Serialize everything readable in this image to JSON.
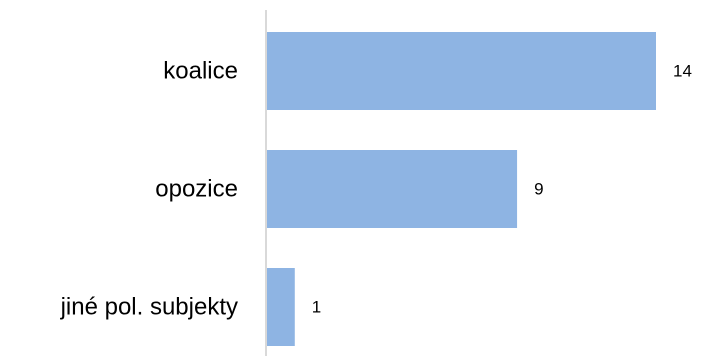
{
  "chart_data": {
    "type": "bar",
    "orientation": "horizontal",
    "categories": [
      "koalice",
      "opozice",
      "jiné pol. subjekty"
    ],
    "values": [
      14,
      9,
      1
    ],
    "data_labels": [
      "14",
      "9",
      "1"
    ],
    "title": "",
    "xlabel": "",
    "ylabel": "",
    "xlim": [
      0,
      15
    ],
    "grid": false,
    "legend": "none",
    "bar_color": "#8EB4E3",
    "axis_color": "#D9D9D9"
  }
}
